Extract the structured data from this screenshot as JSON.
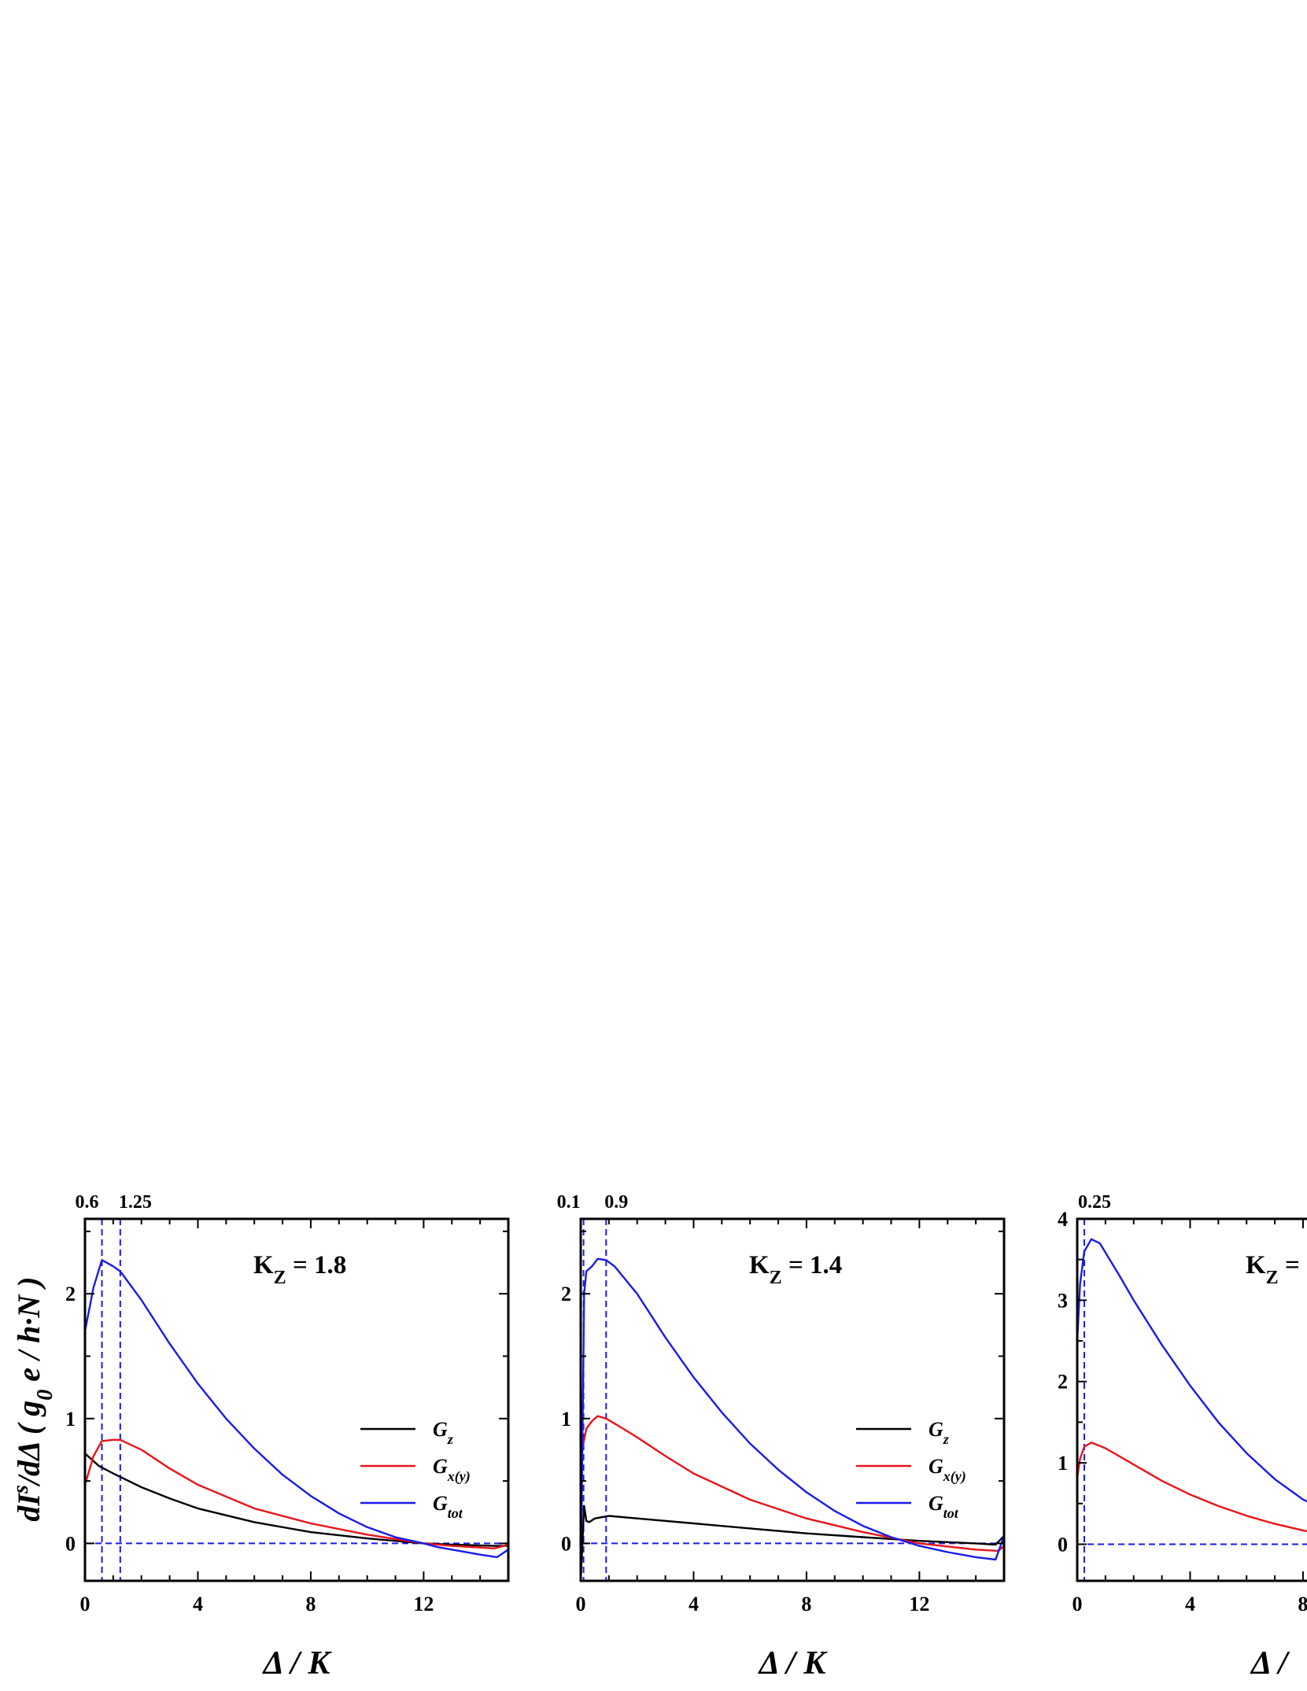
{
  "figure": {
    "ylabel": "dI s/dΔ ( g0 e / h·N )",
    "ylabel_parts": {
      "base": "dI",
      "sup": "s",
      "mid": "/dΔ ( g",
      "sub": "0",
      "tail": " e / h·N )"
    }
  },
  "legend_entries": [
    {
      "key": "Gz",
      "base": "G",
      "sub": "z",
      "color": "#000000"
    },
    {
      "key": "Gxy",
      "base": "G",
      "sub": "x(y)",
      "color": "#e8141a"
    },
    {
      "key": "Gtot",
      "base": "G",
      "sub": "tot",
      "color": "#1a1aeb"
    }
  ],
  "chart_data": [
    {
      "type": "line",
      "annotation": {
        "base": "K",
        "sub": "Z",
        "value": " = 1.8"
      },
      "xlabel": "Δ / K",
      "xlim": [
        0,
        15
      ],
      "ylim": [
        -0.3,
        2.6
      ],
      "x_ticks": [
        0,
        4,
        8,
        12
      ],
      "y_ticks": [
        0,
        1,
        2
      ],
      "marker_lines": [
        0.6,
        1.25
      ],
      "marker_labels": [
        "0.6",
        "1.25"
      ],
      "zero_line": 0,
      "series": [
        {
          "name": "Gz",
          "color": "#000000",
          "x": [
            0,
            0.5,
            1,
            2,
            3,
            4,
            6,
            8,
            10,
            12,
            13,
            14.5,
            15
          ],
          "y": [
            0.72,
            0.62,
            0.56,
            0.45,
            0.36,
            0.28,
            0.17,
            0.09,
            0.04,
            0.0,
            -0.01,
            -0.02,
            -0.02
          ]
        },
        {
          "name": "Gxy",
          "color": "#e8141a",
          "x": [
            0,
            0.3,
            0.6,
            1,
            1.25,
            2,
            3,
            4,
            6,
            8,
            10,
            12,
            13,
            14.5,
            15
          ],
          "y": [
            0.47,
            0.7,
            0.82,
            0.83,
            0.83,
            0.75,
            0.6,
            0.47,
            0.28,
            0.16,
            0.07,
            0.0,
            -0.02,
            -0.04,
            -0.01
          ]
        },
        {
          "name": "Gtot",
          "color": "#1a1aeb",
          "x": [
            0,
            0.3,
            0.6,
            1,
            1.25,
            2,
            3,
            4,
            5,
            6,
            7,
            8,
            9,
            10,
            11,
            12,
            12.5,
            13,
            14,
            14.6,
            15
          ],
          "y": [
            1.7,
            2.05,
            2.27,
            2.22,
            2.18,
            1.95,
            1.6,
            1.28,
            1.0,
            0.76,
            0.55,
            0.38,
            0.24,
            0.13,
            0.05,
            0.0,
            -0.03,
            -0.05,
            -0.09,
            -0.11,
            -0.05
          ]
        }
      ]
    },
    {
      "type": "line",
      "annotation": {
        "base": "K",
        "sub": "Z",
        "value": " = 1.4"
      },
      "xlabel": "Δ / K",
      "xlim": [
        0,
        15
      ],
      "ylim": [
        -0.3,
        2.6
      ],
      "x_ticks": [
        0,
        4,
        8,
        12
      ],
      "y_ticks": [
        0,
        1,
        2
      ],
      "marker_lines": [
        0.1,
        0.9
      ],
      "marker_labels": [
        "0.1",
        "0.9"
      ],
      "zero_line": 0,
      "series": [
        {
          "name": "Gz",
          "color": "#000000",
          "x": [
            0,
            0.12,
            0.2,
            0.3,
            0.5,
            1,
            2,
            4,
            6,
            8,
            10,
            12,
            14,
            14.7,
            15
          ],
          "y": [
            -0.3,
            0.3,
            0.18,
            0.17,
            0.2,
            0.22,
            0.2,
            0.16,
            0.12,
            0.08,
            0.05,
            0.02,
            0.0,
            -0.01,
            0.06
          ]
        },
        {
          "name": "Gxy",
          "color": "#e8141a",
          "x": [
            0,
            0.05,
            0.2,
            0.4,
            0.6,
            0.9,
            1.5,
            2,
            3,
            4,
            6,
            8,
            10,
            12,
            14,
            14.8,
            15
          ],
          "y": [
            0.55,
            0.75,
            0.92,
            0.98,
            1.02,
            1.0,
            0.92,
            0.85,
            0.7,
            0.56,
            0.35,
            0.2,
            0.09,
            0.0,
            -0.05,
            -0.06,
            -0.02
          ]
        },
        {
          "name": "Gtot",
          "color": "#1a1aeb",
          "x": [
            0,
            0.08,
            0.12,
            0.2,
            0.4,
            0.6,
            0.9,
            1.2,
            2,
            3,
            4,
            5,
            6,
            7,
            8,
            9,
            10,
            11,
            12,
            13,
            14,
            14.7,
            15
          ],
          "y": [
            -0.3,
            1.2,
            2.0,
            2.18,
            2.22,
            2.28,
            2.27,
            2.22,
            2.0,
            1.65,
            1.33,
            1.05,
            0.8,
            0.59,
            0.41,
            0.26,
            0.14,
            0.05,
            -0.02,
            -0.07,
            -0.11,
            -0.13,
            0.06
          ]
        }
      ]
    },
    {
      "type": "line",
      "annotation": {
        "base": "K",
        "sub": "Z",
        "value": " ="
      },
      "xlabel": "Δ / ",
      "xlim": [
        0,
        15
      ],
      "ylim": [
        -0.45,
        4.0
      ],
      "x_ticks": [
        0,
        4,
        8
      ],
      "x_tick_labels": [
        "0",
        "4",
        "8"
      ],
      "y_ticks": [
        0,
        1,
        2,
        3,
        4
      ],
      "marker_lines": [
        0.25
      ],
      "marker_labels": [
        "0.25"
      ],
      "zero_line": 0,
      "series": [
        {
          "name": "Gxy",
          "color": "#e8141a",
          "x": [
            0,
            0.1,
            0.25,
            0.5,
            1,
            2,
            3,
            4,
            5,
            6,
            7,
            8,
            9
          ],
          "y": [
            0.82,
            1.05,
            1.2,
            1.25,
            1.18,
            0.98,
            0.78,
            0.61,
            0.47,
            0.35,
            0.25,
            0.17,
            0.1
          ]
        },
        {
          "name": "Gtot",
          "color": "#1a1aeb",
          "x": [
            0,
            0.1,
            0.25,
            0.5,
            0.8,
            1.5,
            2,
            3,
            4,
            5,
            6,
            7,
            8,
            9
          ],
          "y": [
            2.5,
            3.2,
            3.6,
            3.75,
            3.7,
            3.3,
            3.0,
            2.45,
            1.95,
            1.5,
            1.12,
            0.8,
            0.55,
            0.38
          ]
        }
      ]
    }
  ]
}
